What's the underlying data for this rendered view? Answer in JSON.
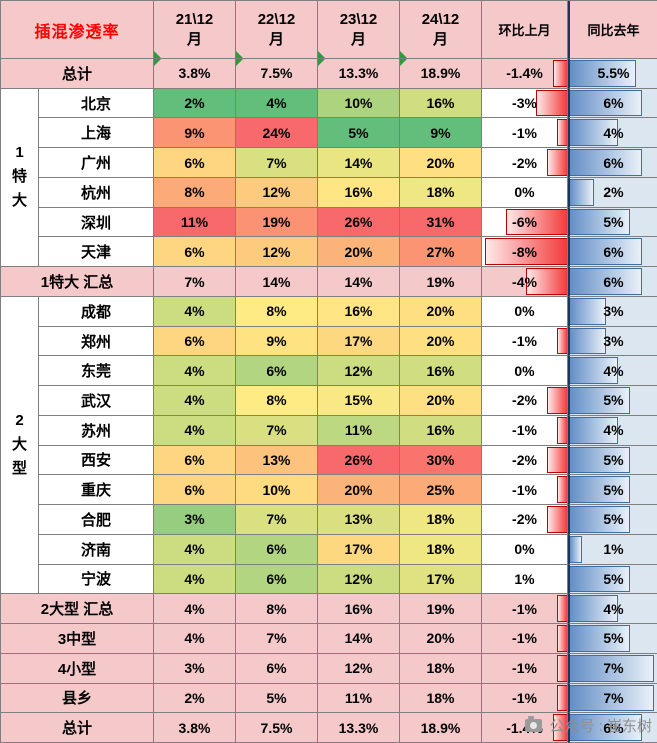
{
  "chart_data": {
    "type": "table",
    "title": "插混渗透率",
    "year_columns": [
      "21\\12\n月",
      "22\\12\n月",
      "23\\12\n月",
      "24\\12\n月"
    ],
    "mom_header": "环比上月",
    "yoy_header": "同比去年",
    "groups": [
      {
        "label": "1特大",
        "start": 1,
        "span": 6
      },
      {
        "label": "2大型",
        "start": 8,
        "span": 10
      }
    ],
    "rows": [
      {
        "kind": "summary",
        "label": "总计",
        "values": [
          "3.8%",
          "7.5%",
          "13.3%",
          "18.9%"
        ],
        "mom": "-1.4%",
        "yoy": "5.5%",
        "triangles": true
      },
      {
        "kind": "city",
        "label": "北京",
        "values": [
          "2%",
          "4%",
          "10%",
          "16%"
        ],
        "mom": "-3%",
        "yoy": "6%"
      },
      {
        "kind": "city",
        "label": "上海",
        "values": [
          "9%",
          "24%",
          "5%",
          "9%"
        ],
        "mom": "-1%",
        "yoy": "4%"
      },
      {
        "kind": "city",
        "label": "广州",
        "values": [
          "6%",
          "7%",
          "14%",
          "20%"
        ],
        "mom": "-2%",
        "yoy": "6%"
      },
      {
        "kind": "city",
        "label": "杭州",
        "values": [
          "8%",
          "12%",
          "16%",
          "18%"
        ],
        "mom": "0%",
        "yoy": "2%"
      },
      {
        "kind": "city",
        "label": "深圳",
        "values": [
          "11%",
          "19%",
          "26%",
          "31%"
        ],
        "mom": "-6%",
        "yoy": "5%"
      },
      {
        "kind": "city",
        "label": "天津",
        "values": [
          "6%",
          "12%",
          "20%",
          "27%"
        ],
        "mom": "-8%",
        "yoy": "6%"
      },
      {
        "kind": "summary",
        "label": "1特大 汇总",
        "values": [
          "7%",
          "14%",
          "14%",
          "19%"
        ],
        "mom": "-4%",
        "yoy": "6%"
      },
      {
        "kind": "city",
        "label": "成都",
        "values": [
          "4%",
          "8%",
          "16%",
          "20%"
        ],
        "mom": "0%",
        "yoy": "3%"
      },
      {
        "kind": "city",
        "label": "郑州",
        "values": [
          "6%",
          "9%",
          "17%",
          "20%"
        ],
        "mom": "-1%",
        "yoy": "3%"
      },
      {
        "kind": "city",
        "label": "东莞",
        "values": [
          "4%",
          "6%",
          "12%",
          "16%"
        ],
        "mom": "0%",
        "yoy": "4%"
      },
      {
        "kind": "city",
        "label": "武汉",
        "values": [
          "4%",
          "8%",
          "15%",
          "20%"
        ],
        "mom": "-2%",
        "yoy": "5%"
      },
      {
        "kind": "city",
        "label": "苏州",
        "values": [
          "4%",
          "7%",
          "11%",
          "16%"
        ],
        "mom": "-1%",
        "yoy": "4%"
      },
      {
        "kind": "city",
        "label": "西安",
        "values": [
          "6%",
          "13%",
          "26%",
          "30%"
        ],
        "mom": "-2%",
        "yoy": "5%"
      },
      {
        "kind": "city",
        "label": "重庆",
        "values": [
          "6%",
          "10%",
          "20%",
          "25%"
        ],
        "mom": "-1%",
        "yoy": "5%"
      },
      {
        "kind": "city",
        "label": "合肥",
        "values": [
          "3%",
          "7%",
          "13%",
          "18%"
        ],
        "mom": "-2%",
        "yoy": "5%"
      },
      {
        "kind": "city",
        "label": "济南",
        "values": [
          "4%",
          "6%",
          "17%",
          "18%"
        ],
        "mom": "0%",
        "yoy": "1%"
      },
      {
        "kind": "city",
        "label": "宁波",
        "values": [
          "4%",
          "6%",
          "12%",
          "17%"
        ],
        "mom": "1%",
        "yoy": "5%"
      },
      {
        "kind": "summary",
        "label": "2大型 汇总",
        "values": [
          "4%",
          "8%",
          "16%",
          "19%"
        ],
        "mom": "-1%",
        "yoy": "4%"
      },
      {
        "kind": "summary",
        "label": "3中型",
        "values": [
          "4%",
          "7%",
          "14%",
          "20%"
        ],
        "mom": "-1%",
        "yoy": "5%"
      },
      {
        "kind": "summary",
        "label": "4小型",
        "values": [
          "3%",
          "6%",
          "12%",
          "18%"
        ],
        "mom": "-1%",
        "yoy": "7%"
      },
      {
        "kind": "summary",
        "label": "县乡",
        "values": [
          "2%",
          "5%",
          "11%",
          "18%"
        ],
        "mom": "-1%",
        "yoy": "7%"
      },
      {
        "kind": "summary",
        "label": "总计",
        "values": [
          "3.8%",
          "7.5%",
          "13.3%",
          "18.9%"
        ],
        "mom": "-1.4%",
        "yoy": "6%"
      }
    ],
    "heatmap_colors": {
      "low": "#63BE7B",
      "mid": "#FFEB84",
      "high": "#F8696B"
    },
    "mom_bar": {
      "fill": "#F23B3B",
      "border": "#C00000",
      "fade": "#FFE9E9",
      "scale_max": 8
    },
    "yoy_bar": {
      "fill": "#638EC6",
      "border": "#3F6DA8",
      "fade": "#E9F1F9",
      "cell_bg": "#DCE6F1",
      "scale_max": 7
    }
  },
  "colors": {
    "pink": "#F5C8CA",
    "title_red": "#FF0000",
    "grid_line": "#7F7F7F",
    "axis_dark": "#17375D",
    "triangle_green": "#2C9C3E"
  },
  "watermark": {
    "text": "公众号 : 崔东树"
  }
}
